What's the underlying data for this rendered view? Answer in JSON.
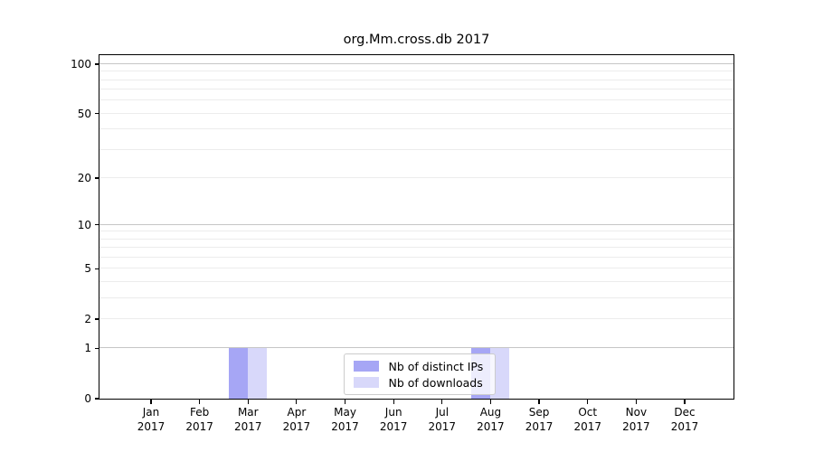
{
  "chart_data": {
    "type": "bar",
    "title": "org.Mm.cross.db 2017",
    "categories": [
      "Jan",
      "Feb",
      "Mar",
      "Apr",
      "May",
      "Jun",
      "Jul",
      "Aug",
      "Sep",
      "Oct",
      "Nov",
      "Dec"
    ],
    "year_label": "2017",
    "series": [
      {
        "name": "Nb of distinct IPs",
        "color": "#a6a6f5",
        "values": [
          0,
          0,
          1,
          0,
          0,
          0,
          0,
          1,
          0,
          0,
          0,
          0
        ]
      },
      {
        "name": "Nb of downloads",
        "color": "#d8d8fa",
        "values": [
          0,
          0,
          1,
          0,
          0,
          0,
          0,
          1,
          0,
          0,
          0,
          0
        ]
      }
    ],
    "yscale": "symlog",
    "yticks_labeled": [
      0,
      1,
      2,
      5,
      10,
      20,
      50,
      100
    ],
    "yticks_minor": [
      3,
      4,
      6,
      7,
      8,
      9,
      30,
      40,
      60,
      70,
      80,
      90
    ],
    "ylim": [
      0,
      113
    ],
    "grid": true,
    "legend_position": "lower center",
    "colors": {
      "grid_major": "#c6c6c6",
      "grid_minor": "#ececec",
      "axis": "#000000",
      "background": "#ffffff",
      "text": "#000000"
    }
  }
}
